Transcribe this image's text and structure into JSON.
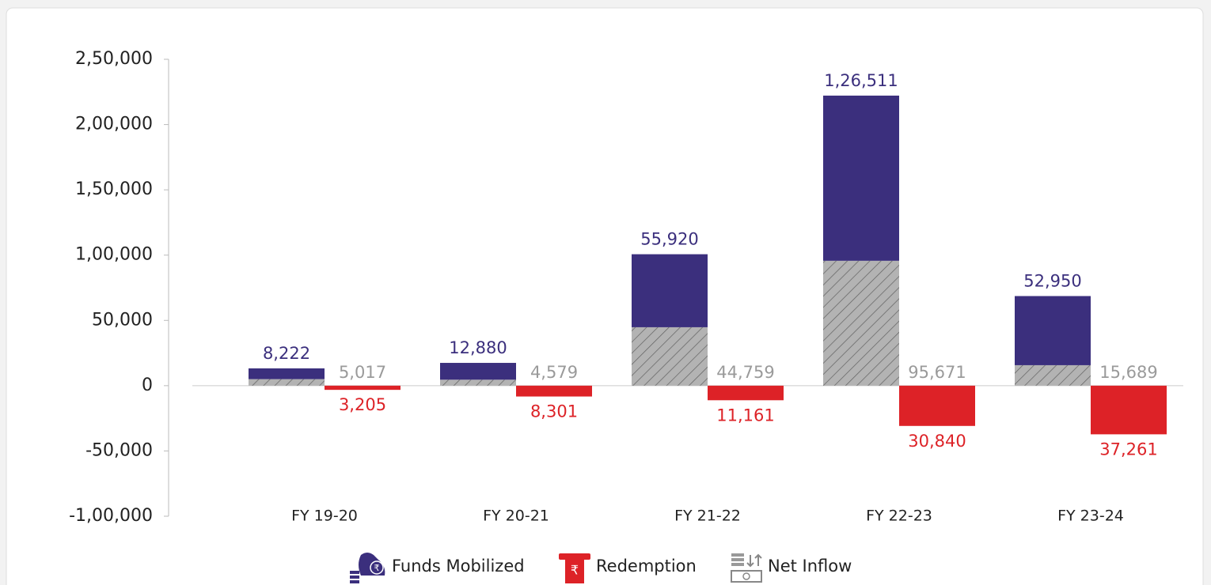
{
  "chart_data": {
    "type": "bar",
    "categories": [
      "FY 19-20",
      "FY 20-21",
      "FY 21-22",
      "FY 22-23",
      "FY 23-24"
    ],
    "series": [
      {
        "name": "Net Inflow",
        "color": "#b3b3b3",
        "pattern": "hatch",
        "stacked": true,
        "label_color": "#9a9a9a",
        "values": [
          5017,
          4579,
          44759,
          95671,
          15689
        ],
        "value_labels": [
          "5,017",
          "4,579",
          "44,759",
          "95,671",
          "15,689"
        ]
      },
      {
        "name": "Funds Mobilized",
        "color": "#3b2f7d",
        "stacked": true,
        "values": [
          8222,
          12880,
          55920,
          126511,
          52950
        ],
        "value_labels": [
          "8,222",
          "12,880",
          "55,920",
          "1,26,511",
          "52,950"
        ]
      },
      {
        "name": "Redemption",
        "color": "#dd2227",
        "values": [
          -3205,
          -8301,
          -11161,
          -30840,
          -37261
        ],
        "value_labels": [
          "3,205",
          "8,301",
          "11,161",
          "30,840",
          "37,261"
        ]
      }
    ],
    "ylim": [
      -100000,
      250000
    ],
    "yticks": [
      {
        "value": -100000,
        "label": "-1,00,000"
      },
      {
        "value": -50000,
        "label": "-50,000"
      },
      0,
      {
        "value": 50000,
        "label": "50,000"
      },
      {
        "value": 100000,
        "label": "1,00,000"
      },
      {
        "value": 150000,
        "label": "1,50,000"
      },
      {
        "value": 200000,
        "label": "2,00,000"
      },
      {
        "value": 250000,
        "label": "2,50,000"
      }
    ],
    "legend": "bottom"
  }
}
